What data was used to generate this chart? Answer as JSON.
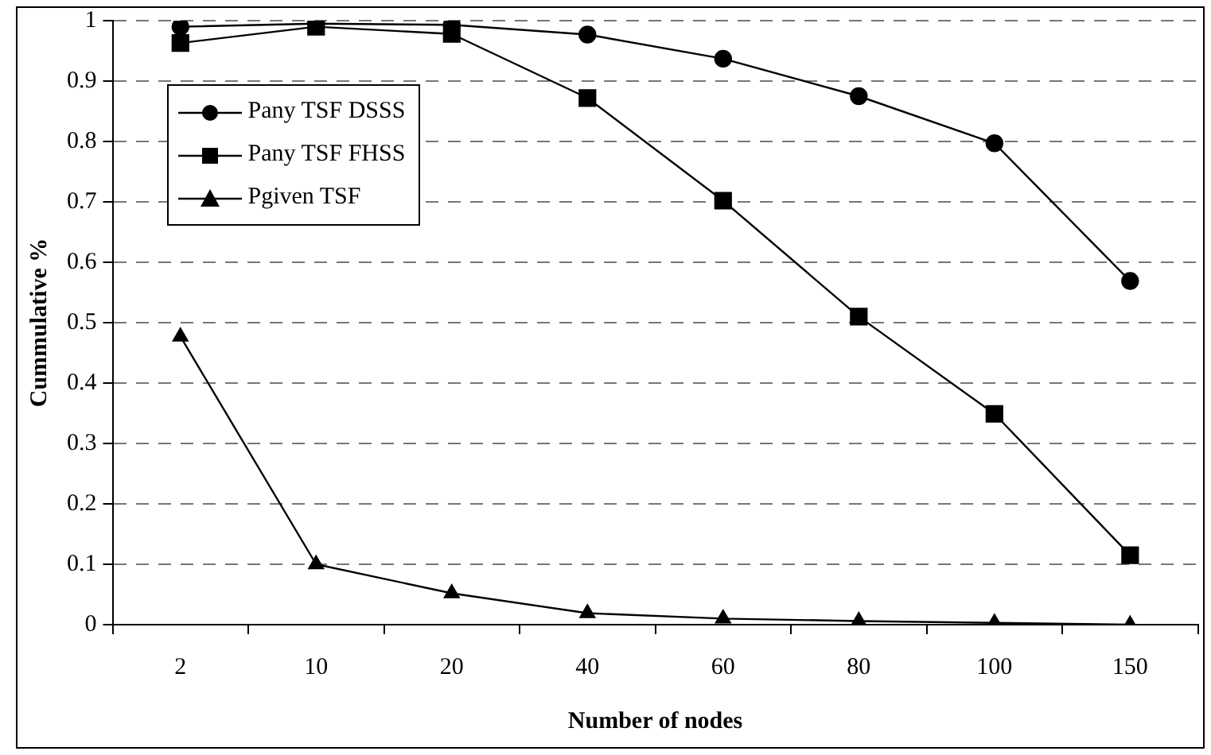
{
  "chart_data": {
    "type": "line",
    "xlabel": "Number of nodes",
    "ylabel": "Cummulative %",
    "categories": [
      "2",
      "10",
      "20",
      "40",
      "60",
      "80",
      "100",
      "150"
    ],
    "series": [
      {
        "name": "Pany TSF DSSS",
        "color": "#000000",
        "marker": "circle",
        "values": [
          0.99,
          0.995,
          0.993,
          0.977,
          0.937,
          0.875,
          0.797,
          0.569
        ]
      },
      {
        "name": "Pany TSF FHSS",
        "color": "#000000",
        "marker": "square",
        "values": [
          0.963,
          0.99,
          0.978,
          0.872,
          0.702,
          0.51,
          0.349,
          0.115
        ]
      },
      {
        "name": "Pgiven TSF",
        "color": "#000000",
        "marker": "triangle",
        "values": [
          0.477,
          0.1,
          0.052,
          0.019,
          0.01,
          0.006,
          0.003,
          0
        ]
      }
    ],
    "ylim": [
      0,
      1
    ],
    "yticks": [
      0,
      0.1,
      0.2,
      0.3,
      0.4,
      0.5,
      0.6,
      0.7,
      0.8,
      0.9,
      1
    ],
    "grid": "y",
    "legend": "top left",
    "line_style": "solid"
  }
}
